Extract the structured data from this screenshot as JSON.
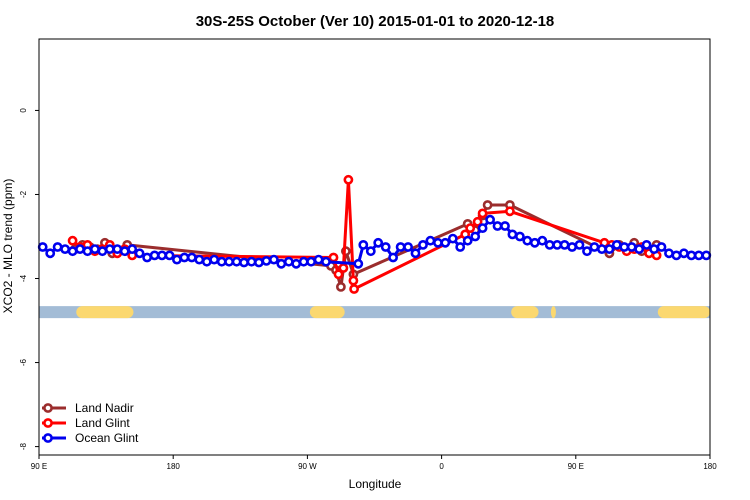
{
  "chart_data": {
    "type": "line",
    "title": "30S-25S October (Ver 10)   2015-01-01 to 2020-12-18",
    "xlabel": "Longitude",
    "ylabel": "XCO2 - MLO trend (ppm)",
    "xlim": [
      -90,
      180
    ],
    "ylim": [
      -8.2,
      1.7
    ],
    "xticks": [
      {
        "value": -90,
        "label": "90 E"
      },
      {
        "value": -36,
        "label": "180"
      },
      {
        "value": 18,
        "label": "90 W"
      },
      {
        "value": 72,
        "label": "0"
      },
      {
        "value": 126,
        "label": "90 E"
      },
      {
        "value": 180,
        "label": "180"
      }
    ],
    "yticks": [
      {
        "value": 0,
        "label": "0"
      },
      {
        "value": -2,
        "label": "-2"
      },
      {
        "value": -4,
        "label": "-4"
      },
      {
        "value": -6,
        "label": "-6"
      },
      {
        "value": -8,
        "label": "-8"
      }
    ],
    "band": {
      "y": -4.8,
      "color": "#a3bcd6",
      "land_color": "#fbd870",
      "land_segments": [
        [
          -75,
          -52
        ],
        [
          19,
          33
        ],
        [
          100,
          111
        ],
        [
          116,
          118
        ],
        [
          159,
          183
        ]
      ]
    },
    "legend": {
      "position": "bottom-left",
      "entries": [
        {
          "name": "Land Nadir",
          "color": "#9b2d2d"
        },
        {
          "name": "Land Glint",
          "color": "#ff0000"
        },
        {
          "name": "Ocean Glint",
          "color": "#0000ee"
        }
      ]
    },
    "series": [
      {
        "name": "Land Nadir",
        "color": "#9b2d2d",
        "points": [
          [
            -75.5,
            -3.3
          ],
          [
            -72.5,
            -3.2
          ],
          [
            -69.5,
            -3.25
          ],
          [
            -66.5,
            -3.3
          ],
          [
            -63.5,
            -3.15
          ],
          [
            -60.5,
            -3.4
          ],
          [
            -54.5,
            -3.2
          ],
          [
            27.5,
            -3.7
          ],
          [
            29.5,
            -3.8
          ],
          [
            31.5,
            -4.2
          ],
          [
            33.5,
            -3.35
          ],
          [
            36.5,
            -3.9
          ],
          [
            82.5,
            -2.7
          ],
          [
            85.5,
            -2.85
          ],
          [
            88.5,
            -2.5
          ],
          [
            90.5,
            -2.25
          ],
          [
            99.5,
            -2.25
          ],
          [
            139.5,
            -3.4
          ],
          [
            143.5,
            -3.2
          ],
          [
            146.5,
            -3.3
          ],
          [
            149.5,
            -3.15
          ],
          [
            152.5,
            -3.35
          ],
          [
            155.5,
            -3.3
          ],
          [
            158.5,
            -3.2
          ]
        ]
      },
      {
        "name": "Land Glint",
        "color": "#ff0000",
        "points": [
          [
            -76.5,
            -3.1
          ],
          [
            -73.5,
            -3.25
          ],
          [
            -70.5,
            -3.2
          ],
          [
            -67.5,
            -3.35
          ],
          [
            -64.5,
            -3.3
          ],
          [
            -61.5,
            -3.2
          ],
          [
            -58.5,
            -3.4
          ],
          [
            -55.5,
            -3.3
          ],
          [
            -52.5,
            -3.45
          ],
          [
            28.5,
            -3.5
          ],
          [
            30.5,
            -3.9
          ],
          [
            32.5,
            -3.75
          ],
          [
            34.5,
            -1.65
          ],
          [
            36.5,
            -4.05
          ],
          [
            36.8,
            -4.25
          ],
          [
            81.5,
            -2.95
          ],
          [
            83.5,
            -2.8
          ],
          [
            86.5,
            -2.65
          ],
          [
            88.5,
            -2.45
          ],
          [
            99.5,
            -2.4
          ],
          [
            137.5,
            -3.15
          ],
          [
            140.5,
            -3.2
          ],
          [
            143.5,
            -3.25
          ],
          [
            146.5,
            -3.35
          ],
          [
            149.5,
            -3.3
          ],
          [
            152.5,
            -3.25
          ],
          [
            155.5,
            -3.4
          ],
          [
            158.5,
            -3.45
          ]
        ]
      },
      {
        "name": "Ocean Glint",
        "color": "#0000ee",
        "points": [
          [
            -88.5,
            -3.25
          ],
          [
            -85.5,
            -3.4
          ],
          [
            -82.5,
            -3.25
          ],
          [
            -79.5,
            -3.3
          ],
          [
            -76.5,
            -3.35
          ],
          [
            -73.5,
            -3.3
          ],
          [
            -70.5,
            -3.35
          ],
          [
            -67.5,
            -3.3
          ],
          [
            -64.5,
            -3.35
          ],
          [
            -61.5,
            -3.3
          ],
          [
            -58.5,
            -3.3
          ],
          [
            -55.5,
            -3.35
          ],
          [
            -52.5,
            -3.3
          ],
          [
            -49.5,
            -3.4
          ],
          [
            -46.5,
            -3.5
          ],
          [
            -43.5,
            -3.45
          ],
          [
            -40.5,
            -3.45
          ],
          [
            -37.5,
            -3.45
          ],
          [
            -34.5,
            -3.55
          ],
          [
            -31.5,
            -3.5
          ],
          [
            -28.5,
            -3.5
          ],
          [
            -25.5,
            -3.55
          ],
          [
            -22.5,
            -3.6
          ],
          [
            -19.5,
            -3.55
          ],
          [
            -16.5,
            -3.6
          ],
          [
            -13.5,
            -3.6
          ],
          [
            -10.5,
            -3.6
          ],
          [
            -7.5,
            -3.62
          ],
          [
            -4.5,
            -3.6
          ],
          [
            -1.5,
            -3.62
          ],
          [
            1.5,
            -3.58
          ],
          [
            4.5,
            -3.55
          ],
          [
            7.5,
            -3.65
          ],
          [
            10.5,
            -3.6
          ],
          [
            13.5,
            -3.65
          ],
          [
            16.5,
            -3.6
          ],
          [
            19.5,
            -3.6
          ],
          [
            22.5,
            -3.55
          ],
          [
            25.5,
            -3.6
          ],
          [
            38.5,
            -3.65
          ],
          [
            40.5,
            -3.2
          ],
          [
            43.5,
            -3.35
          ],
          [
            46.5,
            -3.15
          ],
          [
            49.5,
            -3.25
          ],
          [
            52.5,
            -3.5
          ],
          [
            55.5,
            -3.25
          ],
          [
            58.5,
            -3.25
          ],
          [
            61.5,
            -3.4
          ],
          [
            64.5,
            -3.2
          ],
          [
            67.5,
            -3.1
          ],
          [
            70.5,
            -3.15
          ],
          [
            73.5,
            -3.15
          ],
          [
            76.5,
            -3.05
          ],
          [
            79.5,
            -3.25
          ],
          [
            82.5,
            -3.1
          ],
          [
            85.5,
            -3.0
          ],
          [
            88.5,
            -2.8
          ],
          [
            91.5,
            -2.6
          ],
          [
            94.5,
            -2.75
          ],
          [
            97.5,
            -2.75
          ],
          [
            100.5,
            -2.95
          ],
          [
            103.5,
            -3.0
          ],
          [
            106.5,
            -3.1
          ],
          [
            109.5,
            -3.15
          ],
          [
            112.5,
            -3.1
          ],
          [
            115.5,
            -3.2
          ],
          [
            118.5,
            -3.2
          ],
          [
            121.5,
            -3.2
          ],
          [
            124.5,
            -3.25
          ],
          [
            127.5,
            -3.2
          ],
          [
            130.5,
            -3.35
          ],
          [
            133.5,
            -3.25
          ],
          [
            136.5,
            -3.3
          ],
          [
            139.5,
            -3.3
          ],
          [
            142.5,
            -3.2
          ],
          [
            145.5,
            -3.25
          ],
          [
            148.5,
            -3.25
          ],
          [
            151.5,
            -3.3
          ],
          [
            154.5,
            -3.2
          ],
          [
            157.5,
            -3.3
          ],
          [
            160.5,
            -3.25
          ],
          [
            163.5,
            -3.4
          ],
          [
            166.5,
            -3.45
          ],
          [
            169.5,
            -3.4
          ],
          [
            172.5,
            -3.45
          ],
          [
            175.5,
            -3.45
          ],
          [
            178.5,
            -3.45
          ]
        ]
      }
    ]
  }
}
